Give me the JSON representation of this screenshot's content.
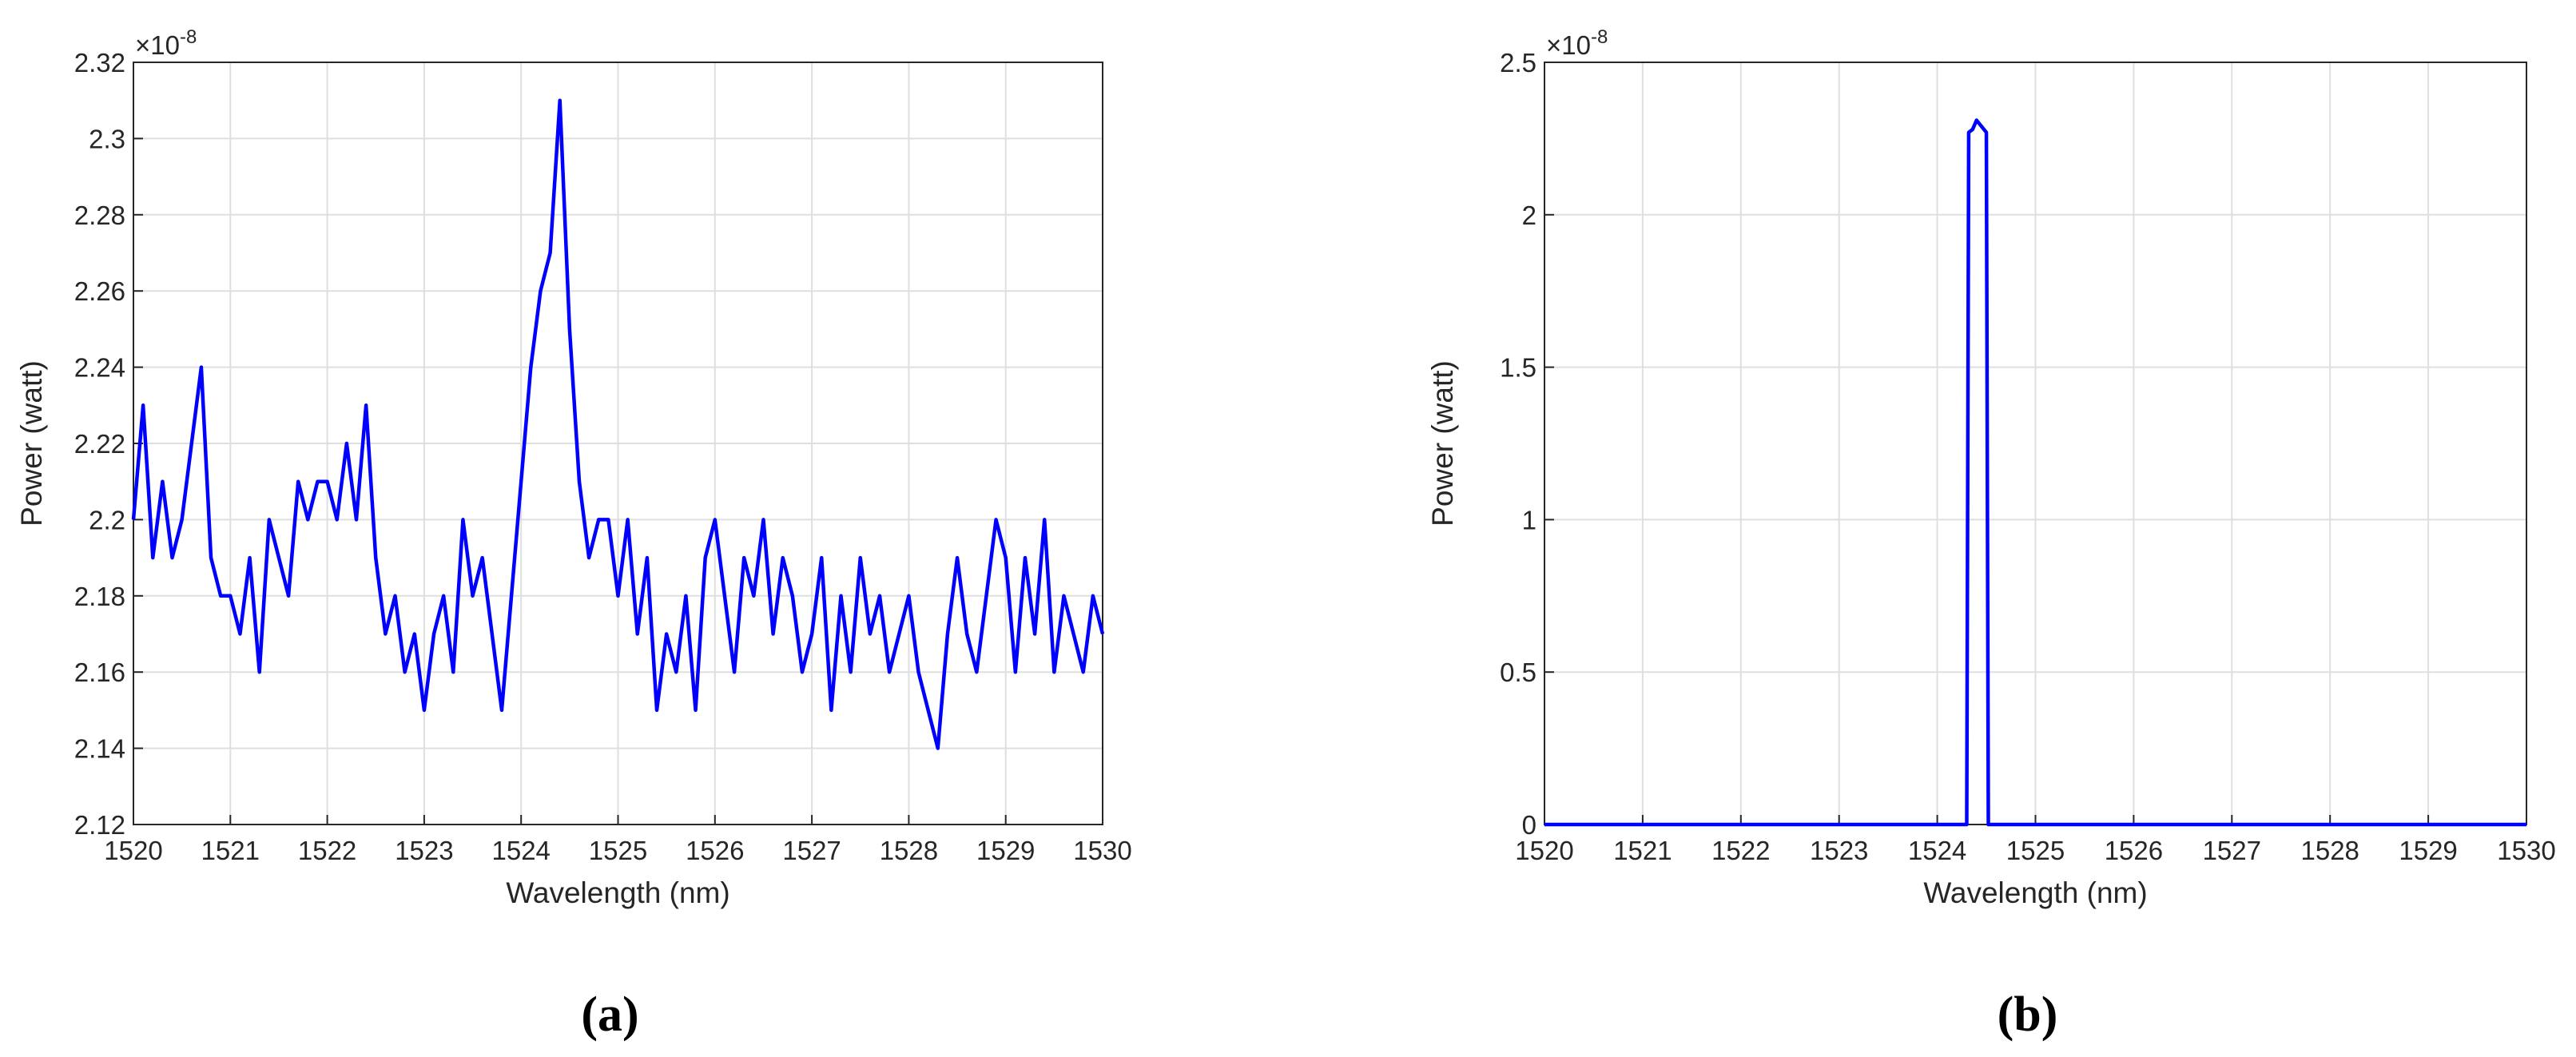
{
  "chart_data": [
    {
      "type": "line",
      "panel_label": "(a)",
      "xlabel": "Wavelength (nm)",
      "ylabel": "Power (watt)",
      "y_exponent": {
        "base": "×10",
        "power": "-8"
      },
      "xlim": [
        1520,
        1530
      ],
      "xticks": [
        1520,
        1521,
        1522,
        1523,
        1524,
        1525,
        1526,
        1527,
        1528,
        1529,
        1530
      ],
      "ylim": [
        2.12,
        2.32
      ],
      "yticks": [
        2.12,
        2.14,
        2.16,
        2.18,
        2.2,
        2.22,
        2.24,
        2.26,
        2.28,
        2.3,
        2.32
      ],
      "grid": true,
      "series": [
        {
          "color": "#0000ff",
          "x": [
            1520,
            1520.1,
            1520.2,
            1520.3,
            1520.4,
            1520.5,
            1520.6,
            1520.7,
            1520.8,
            1520.9,
            1521,
            1521.1,
            1521.2,
            1521.3,
            1521.4,
            1521.5,
            1521.6,
            1521.7,
            1521.8,
            1521.9,
            1522,
            1522.1,
            1522.2,
            1522.3,
            1522.4,
            1522.5,
            1522.6,
            1522.7,
            1522.8,
            1522.9,
            1523,
            1523.1,
            1523.2,
            1523.3,
            1523.4,
            1523.5,
            1523.6,
            1523.7,
            1523.8,
            1523.9,
            1524,
            1524.1,
            1524.2,
            1524.3,
            1524.4,
            1524.5,
            1524.6,
            1524.7,
            1524.8,
            1524.9,
            1525,
            1525.1,
            1525.2,
            1525.3,
            1525.4,
            1525.5,
            1525.6,
            1525.7,
            1525.8,
            1525.9,
            1526,
            1526.1,
            1526.2,
            1526.3,
            1526.4,
            1526.5,
            1526.6,
            1526.7,
            1526.8,
            1526.9,
            1527,
            1527.1,
            1527.2,
            1527.3,
            1527.4,
            1527.5,
            1527.6,
            1527.7,
            1527.8,
            1527.9,
            1528,
            1528.1,
            1528.2,
            1528.3,
            1528.4,
            1528.5,
            1528.6,
            1528.7,
            1528.8,
            1528.9,
            1529,
            1529.1,
            1529.2,
            1529.3,
            1529.4,
            1529.5,
            1529.6,
            1529.7,
            1529.8,
            1529.9,
            1530
          ],
          "values": [
            2.2,
            2.23,
            2.19,
            2.21,
            2.19,
            2.2,
            2.22,
            2.24,
            2.19,
            2.18,
            2.18,
            2.17,
            2.19,
            2.16,
            2.2,
            2.19,
            2.18,
            2.21,
            2.2,
            2.21,
            2.21,
            2.2,
            2.22,
            2.2,
            2.23,
            2.19,
            2.17,
            2.18,
            2.16,
            2.17,
            2.15,
            2.17,
            2.18,
            2.16,
            2.2,
            2.18,
            2.19,
            2.17,
            2.15,
            2.18,
            2.21,
            2.24,
            2.26,
            2.27,
            2.31,
            2.25,
            2.21,
            2.19,
            2.2,
            2.2,
            2.18,
            2.2,
            2.17,
            2.19,
            2.15,
            2.17,
            2.16,
            2.18,
            2.15,
            2.19,
            2.2,
            2.18,
            2.16,
            2.19,
            2.18,
            2.2,
            2.17,
            2.19,
            2.18,
            2.16,
            2.17,
            2.19,
            2.15,
            2.18,
            2.16,
            2.19,
            2.17,
            2.18,
            2.16,
            2.17,
            2.18,
            2.16,
            2.15,
            2.14,
            2.17,
            2.19,
            2.17,
            2.16,
            2.18,
            2.2,
            2.19,
            2.16,
            2.19,
            2.17,
            2.2,
            2.16,
            2.18,
            2.17,
            2.16,
            2.18,
            2.17
          ]
        }
      ]
    },
    {
      "type": "line",
      "panel_label": "(b)",
      "xlabel": "Wavelength (nm)",
      "ylabel": "Power (watt)",
      "y_exponent": {
        "base": "×10",
        "power": "-8"
      },
      "xlim": [
        1520,
        1530
      ],
      "xticks": [
        1520,
        1521,
        1522,
        1523,
        1524,
        1525,
        1526,
        1527,
        1528,
        1529,
        1530
      ],
      "ylim": [
        0,
        2.5
      ],
      "yticks": [
        0,
        0.5,
        1,
        1.5,
        2,
        2.5
      ],
      "grid": true,
      "series": [
        {
          "color": "#0000ff",
          "x": [
            1520,
            1524.3,
            1524.32,
            1524.36,
            1524.4,
            1524.45,
            1524.5,
            1524.52,
            1530
          ],
          "values": [
            0,
            0,
            2.27,
            2.28,
            2.31,
            2.29,
            2.27,
            0,
            0
          ]
        }
      ]
    }
  ]
}
